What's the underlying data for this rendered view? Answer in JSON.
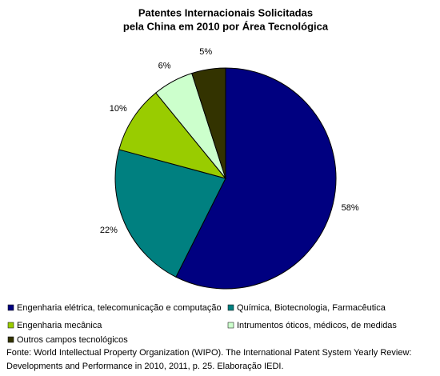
{
  "chart_data": {
    "type": "pie",
    "title": [
      "Patentes Internacionais Solicitadas",
      "pela China em 2010 por Área Tecnológica"
    ],
    "categories": [
      "Engenharia elétrica, telecomunicação e computação",
      "Química, Biotecnologia, Farmacêutica",
      "Engenharia mecânica",
      "Intrumentos óticos, médicos, de medidas",
      "Outros campos tecnológicos"
    ],
    "values": [
      58,
      22,
      10,
      6,
      5
    ],
    "value_labels": [
      "58%",
      "22%",
      "10%",
      "6%",
      "5%"
    ],
    "colors": [
      "#000080",
      "#008080",
      "#99cc00",
      "#ccffcc",
      "#333300"
    ],
    "source": [
      "Fonte: World Intellectual Property Organization (WIPO). The International Patent System Yearly Review:",
      "Developments and Performance in 2010, 2011, p. 25. Elaboração IEDI."
    ]
  }
}
